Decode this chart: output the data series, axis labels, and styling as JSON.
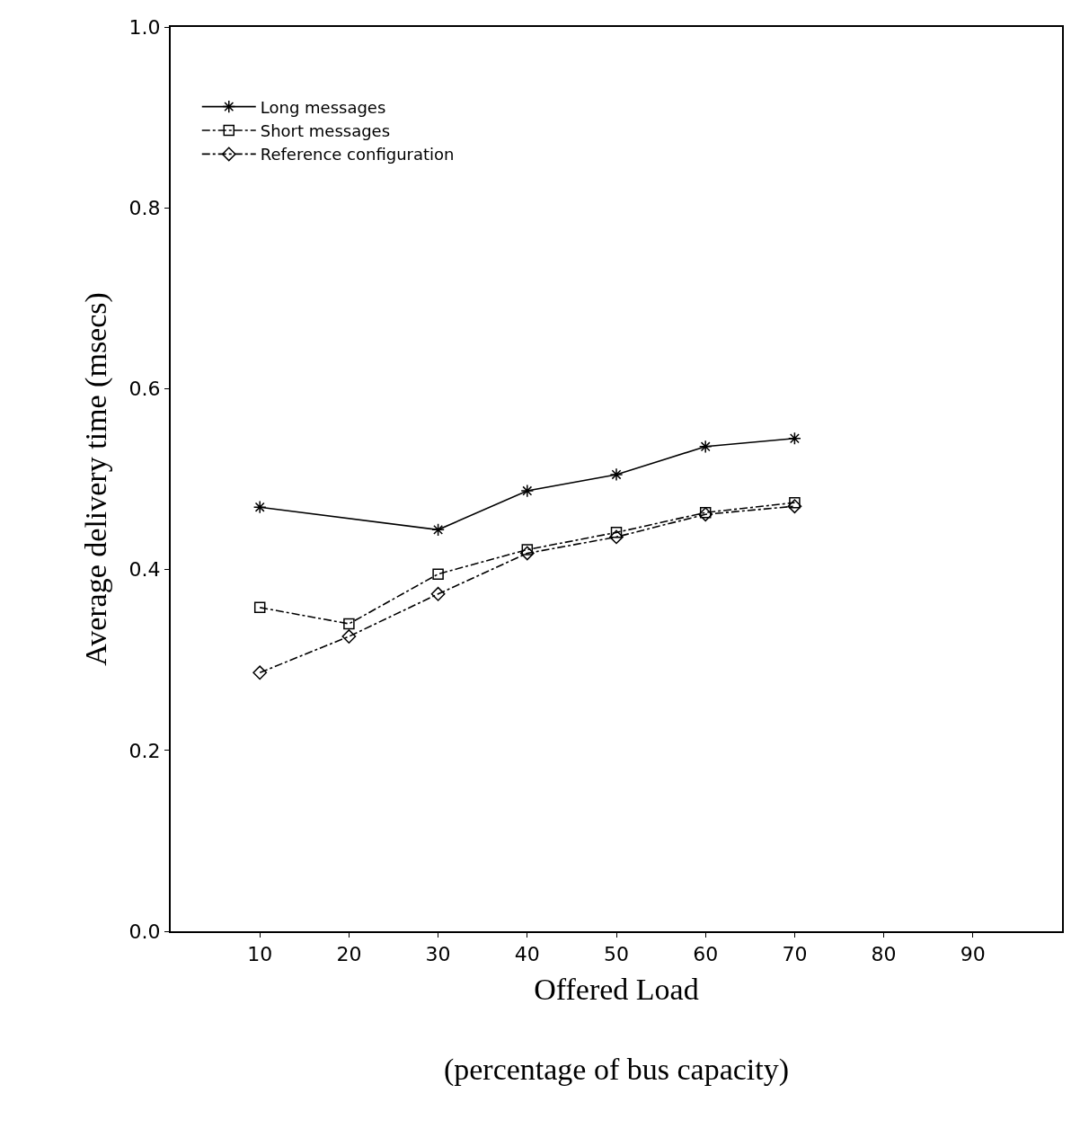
{
  "chart_data": {
    "type": "line",
    "xlabel": "Offered Load\n(percentage of bus capacity)",
    "ylabel": "Average delivery time (msecs)",
    "series": [
      {
        "name": "Long messages",
        "color": "#000000",
        "marker": "cross",
        "line_style": "solid",
        "x": [
          10,
          30,
          40,
          50,
          60,
          70
        ],
        "values": [
          0.469,
          0.444,
          0.487,
          0.505,
          0.536,
          0.545
        ]
      },
      {
        "name": "Short messages",
        "color": "#000000",
        "marker": "square",
        "line_style": "dashed",
        "x": [
          10,
          20,
          30,
          40,
          50,
          60,
          70
        ],
        "values": [
          0.358,
          0.34,
          0.395,
          0.422,
          0.441,
          0.463,
          0.474
        ]
      },
      {
        "name": "Reference configuration",
        "color": "#000000",
        "marker": "diamond",
        "line_style": "dashed",
        "x": [
          10,
          20,
          30,
          40,
          50,
          60,
          70
        ],
        "values": [
          0.286,
          0.326,
          0.373,
          0.418,
          0.436,
          0.461,
          0.47
        ]
      }
    ],
    "xlim": [
      0,
      100
    ],
    "xticks": [
      10,
      20,
      30,
      40,
      50,
      60,
      70,
      80,
      90
    ],
    "ylim": [
      0,
      1
    ],
    "yticks": [
      {
        "value": 0,
        "label": "0.0"
      },
      {
        "value": 0.2,
        "label": "0.2"
      },
      {
        "value": 0.4,
        "label": "0.4"
      },
      {
        "value": 0.6,
        "label": "0.6"
      },
      {
        "value": 0.8,
        "label": "0.8"
      },
      {
        "value": 1,
        "label": "1.0"
      }
    ],
    "legend": "top left"
  }
}
